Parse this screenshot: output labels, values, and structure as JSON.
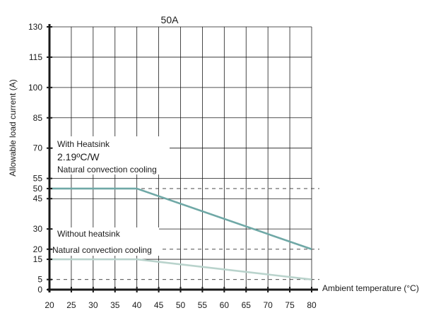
{
  "chart_data": {
    "type": "line",
    "title": "50A",
    "xlabel": "Ambient temperature (°C)",
    "ylabel": "Allowable load current (A)",
    "xlim": [
      20,
      80
    ],
    "ylim": [
      0,
      130
    ],
    "x_ticks": [
      20,
      25,
      30,
      35,
      40,
      45,
      50,
      55,
      60,
      65,
      70,
      75,
      80
    ],
    "y_ticks": [
      0,
      5,
      15,
      20,
      30,
      45,
      50,
      55,
      70,
      85,
      100,
      115,
      130
    ],
    "grid": true,
    "reference_lines_dashed": [
      5,
      20,
      50
    ],
    "series": [
      {
        "color": "#6fa8a6",
        "x": [
          20,
          40,
          80
        ],
        "y": [
          50,
          50,
          20
        ]
      },
      {
        "color": "#b9d3cc",
        "x": [
          20,
          40,
          80
        ],
        "y": [
          15,
          15,
          5
        ]
      }
    ],
    "annotations": {
      "heatsink_title": "With Heatsink",
      "heatsink_resistance": "2.19ºC/W",
      "heatsink_cooling": "Natural convection cooling",
      "no_heatsink_title": "Without heatsink",
      "no_heatsink_cooling": "Natural convection cooling"
    }
  }
}
